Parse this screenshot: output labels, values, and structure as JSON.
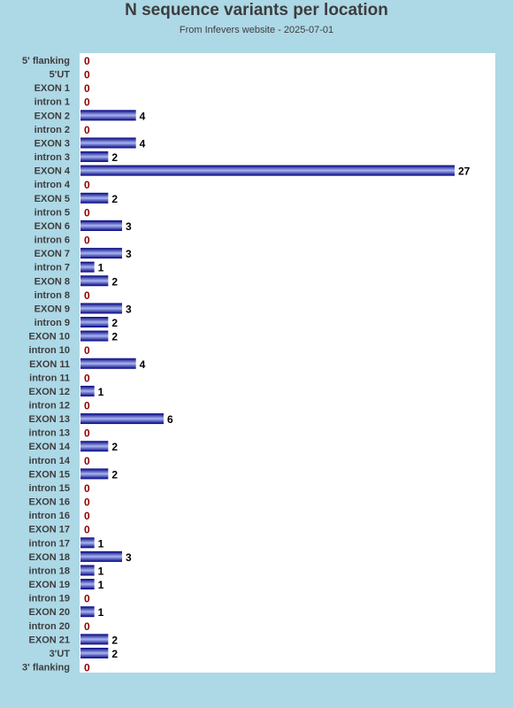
{
  "title": "N sequence variants per location",
  "subtitle": "From Infevers website - 2025-07-01",
  "colors": {
    "background": "#add8e6",
    "plot_bg": "#ffffff",
    "bar_dark": "#000080",
    "bar_light": "#a9b6f0",
    "zero_label": "#8b0000",
    "value_label": "#000000",
    "axis_label": "#3d3d3d"
  },
  "chart_data": {
    "type": "bar",
    "orientation": "horizontal",
    "title": "N sequence variants per location",
    "subtitle": "From Infevers website - 2025-07-01",
    "categories": [
      "5' flanking",
      "5'UT",
      "EXON 1",
      "intron 1",
      "EXON 2",
      "intron 2",
      "EXON 3",
      "intron 3",
      "EXON 4",
      "intron 4",
      "EXON 5",
      "intron 5",
      "EXON 6",
      "intron 6",
      "EXON 7",
      "intron 7",
      "EXON 8",
      "intron 8",
      "EXON 9",
      "intron 9",
      "EXON 10",
      "intron 10",
      "EXON 11",
      "intron 11",
      "EXON 12",
      "intron 12",
      "EXON 13",
      "intron 13",
      "EXON 14",
      "intron 14",
      "EXON 15",
      "intron 15",
      "EXON 16",
      "intron 16",
      "EXON 17",
      "intron 17",
      "EXON 18",
      "intron 18",
      "EXON 19",
      "intron 19",
      "EXON 20",
      "intron 20",
      "EXON 21",
      "3'UT",
      "3' flanking"
    ],
    "values": [
      0,
      0,
      0,
      0,
      4,
      0,
      4,
      2,
      27,
      0,
      2,
      0,
      3,
      0,
      3,
      1,
      2,
      0,
      3,
      2,
      2,
      0,
      4,
      0,
      1,
      0,
      6,
      0,
      2,
      0,
      2,
      0,
      0,
      0,
      0,
      1,
      3,
      1,
      1,
      0,
      1,
      0,
      2,
      2,
      0
    ],
    "xlim": [
      0,
      30
    ],
    "grid": false,
    "legend": false
  }
}
